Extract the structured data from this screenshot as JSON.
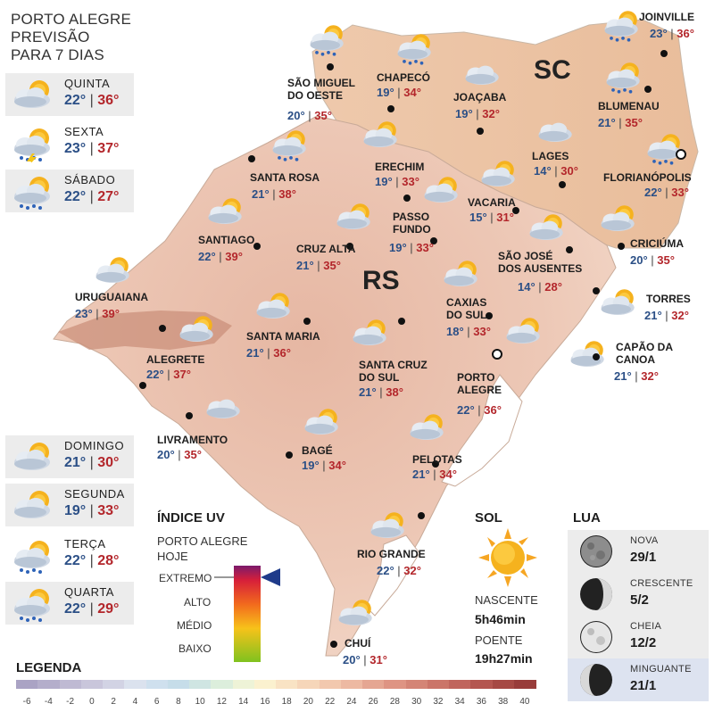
{
  "title": {
    "line1": "PORTO ALEGRE",
    "line2": "PREVISÃO",
    "line3": "PARA 7 DIAS"
  },
  "forecast_left": [
    {
      "day": "QUINTA",
      "min": "22°",
      "max": "36°",
      "icon": "sun-cloud-icon"
    },
    {
      "day": "SEXTA",
      "min": "23°",
      "max": "37°",
      "icon": "storm-cloud-icon"
    },
    {
      "day": "SÁBADO",
      "min": "22°",
      "max": "27°",
      "icon": "sun-rain-icon"
    }
  ],
  "forecast_bottom": [
    {
      "day": "DOMINGO",
      "min": "21°",
      "max": "30°",
      "icon": "sun-cloud-icon"
    },
    {
      "day": "SEGUNDA",
      "min": "19°",
      "max": "33°",
      "icon": "sun-cloud-icon"
    },
    {
      "day": "TERÇA",
      "min": "22°",
      "max": "28°",
      "icon": "sun-rain-icon"
    },
    {
      "day": "QUARTA",
      "min": "22°",
      "max": "29°",
      "icon": "sun-rain-icon"
    }
  ],
  "state_labels": {
    "sc": "SC",
    "rs": "RS"
  },
  "cities": [
    {
      "name": "JOINVILLE",
      "min": "23°",
      "max": "36°"
    },
    {
      "name": "CHAPECÓ",
      "min": "19°",
      "max": "34°"
    },
    {
      "name": "SÃO MIGUEL\nDO OESTE",
      "min": "20°",
      "max": "35°"
    },
    {
      "name": "JOAÇABA",
      "min": "19°",
      "max": "32°"
    },
    {
      "name": "BLUMENAU",
      "min": "21°",
      "max": "35°"
    },
    {
      "name": "LAGES",
      "min": "14°",
      "max": "30°"
    },
    {
      "name": "FLORIANÓPOLIS",
      "min": "22°",
      "max": "33°"
    },
    {
      "name": "ERECHIM",
      "min": "19°",
      "max": "33°"
    },
    {
      "name": "SANTA ROSA",
      "min": "21°",
      "max": "38°"
    },
    {
      "name": "VACARIA",
      "min": "15°",
      "max": "31°"
    },
    {
      "name": "PASSO\nFUNDO",
      "min": "19°",
      "max": "33°"
    },
    {
      "name": "SANTIAGO",
      "min": "22°",
      "max": "39°"
    },
    {
      "name": "CRUZ ALTA",
      "min": "21°",
      "max": "35°"
    },
    {
      "name": "CRICIÚMA",
      "min": "20°",
      "max": "35°"
    },
    {
      "name": "SÃO JOSÉ\nDOS AUSENTES",
      "min": "14°",
      "max": "28°"
    },
    {
      "name": "URUGUAIANA",
      "min": "23°",
      "max": "39°"
    },
    {
      "name": "CAXIAS\nDO SUL",
      "min": "18°",
      "max": "33°"
    },
    {
      "name": "TORRES",
      "min": "21°",
      "max": "32°"
    },
    {
      "name": "SANTA MARIA",
      "min": "21°",
      "max": "36°"
    },
    {
      "name": "ALEGRETE",
      "min": "22°",
      "max": "37°"
    },
    {
      "name": "CAPÃO DA\nCANOA",
      "min": "21°",
      "max": "32°"
    },
    {
      "name": "SANTA CRUZ\nDO SUL",
      "min": "21°",
      "max": "38°"
    },
    {
      "name": "PORTO\nALEGRE",
      "min": "22°",
      "max": "36°"
    },
    {
      "name": "LIVRAMENTO",
      "min": "20°",
      "max": "35°"
    },
    {
      "name": "BAGÉ",
      "min": "19°",
      "max": "34°"
    },
    {
      "name": "PELOTAS",
      "min": "21°",
      "max": "34°"
    },
    {
      "name": "RIO GRANDE",
      "min": "22°",
      "max": "32°"
    },
    {
      "name": "CHUÍ",
      "min": "20°",
      "max": "31°"
    }
  ],
  "uv": {
    "heading": "ÍNDICE UV",
    "sub1": "PORTO ALEGRE",
    "sub2": "HOJE",
    "levels": [
      "EXTREMO",
      "ALTO",
      "MÉDIO",
      "BAIXO"
    ],
    "current": "EXTREMO"
  },
  "sun": {
    "heading": "SOL",
    "rise_label": "NASCENTE",
    "rise": "5h46min",
    "set_label": "POENTE",
    "set": "19h27min"
  },
  "moon": {
    "heading": "LUA",
    "phases": [
      {
        "name": "NOVA",
        "date": "29/1",
        "icon": "new-moon-icon"
      },
      {
        "name": "CRESCENTE",
        "date": "5/2",
        "icon": "waxing-moon-icon"
      },
      {
        "name": "CHEIA",
        "date": "12/2",
        "icon": "full-moon-icon"
      },
      {
        "name": "MINGUANTE",
        "date": "21/1",
        "icon": "waning-moon-icon"
      }
    ]
  },
  "legend": {
    "heading": "LEGENDA",
    "ticks": [
      "-6",
      "-4",
      "-2",
      "0",
      "2",
      "4",
      "6",
      "8",
      "10",
      "12",
      "14",
      "16",
      "18",
      "20",
      "22",
      "24",
      "26",
      "28",
      "30",
      "32",
      "34",
      "36",
      "38",
      "40"
    ],
    "colors": [
      "#aaa3c4",
      "#b4aecb",
      "#bfbad3",
      "#c9c6db",
      "#d2d3e4",
      "#dbe2ee",
      "#cfe0ee",
      "#c6dde9",
      "#cfe5e2",
      "#dceedc",
      "#eef3d7",
      "#fbf1cf",
      "#f9e3c4",
      "#f6d6b9",
      "#f2c8ae",
      "#edb9a2",
      "#e5a692",
      "#de9483",
      "#d48576",
      "#cb7569",
      "#c0655d",
      "#b45650",
      "#a64944",
      "#983c3a"
    ]
  }
}
